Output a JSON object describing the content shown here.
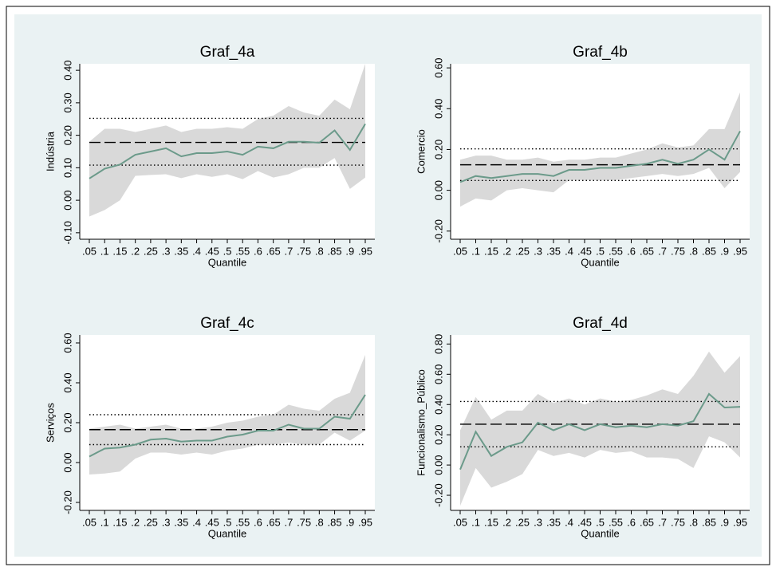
{
  "chart_data": [
    {
      "type": "line",
      "title": "Graf_4a",
      "ylabel": "Indústria",
      "xlabel": "Quantile",
      "categories": [
        ".05",
        ".1",
        ".15",
        ".2",
        ".25",
        ".3",
        ".35",
        ".4",
        ".45",
        ".5",
        ".55",
        ".6",
        ".65",
        ".7",
        ".75",
        ".8",
        ".85",
        ".9",
        ".95"
      ],
      "series": [
        {
          "color": "#6b9a8a",
          "values": [
            0.067,
            0.097,
            0.11,
            0.14,
            0.15,
            0.16,
            0.135,
            0.145,
            0.145,
            0.15,
            0.14,
            0.165,
            0.16,
            0.18,
            0.18,
            0.177,
            0.215,
            0.155,
            0.235
          ]
        }
      ],
      "band": {
        "color": "#d9d9d9",
        "upper": [
          0.18,
          0.22,
          0.22,
          0.21,
          0.22,
          0.23,
          0.21,
          0.22,
          0.22,
          0.225,
          0.22,
          0.25,
          0.26,
          0.29,
          0.27,
          0.26,
          0.31,
          0.28,
          0.42
        ],
        "lower": [
          -0.05,
          -0.03,
          0.0,
          0.075,
          0.078,
          0.08,
          0.068,
          0.08,
          0.072,
          0.08,
          0.065,
          0.09,
          0.07,
          0.08,
          0.1,
          0.1,
          0.13,
          0.035,
          0.07
        ]
      },
      "hlines": [
        {
          "value": 0.178,
          "style": "dashed",
          "color": "#000000"
        },
        {
          "value": 0.252,
          "style": "dotted",
          "color": "#000000"
        },
        {
          "value": 0.108,
          "style": "dotted",
          "color": "#000000"
        }
      ],
      "ylim": [
        -0.12,
        0.42
      ],
      "yticks": [
        {
          "value": -0.1,
          "label": "-0.10"
        },
        {
          "value": 0,
          "label": "0.00"
        },
        {
          "value": 0.1,
          "label": "0.10"
        },
        {
          "value": 0.2,
          "label": "0.20"
        },
        {
          "value": 0.3,
          "label": "0.30"
        },
        {
          "value": 0.4,
          "label": "0.40"
        }
      ]
    },
    {
      "type": "line",
      "title": "Graf_4b",
      "ylabel": "Comercio",
      "xlabel": "Quantile",
      "categories": [
        ".05",
        ".1",
        ".15",
        ".2",
        ".25",
        ".3",
        ".35",
        ".4",
        ".45",
        ".5",
        ".55",
        ".6",
        ".65",
        ".7",
        ".75",
        ".8",
        ".85",
        ".9",
        ".95"
      ],
      "series": [
        {
          "color": "#6b9a8a",
          "values": [
            0.04,
            0.07,
            0.06,
            0.07,
            0.08,
            0.08,
            0.07,
            0.1,
            0.1,
            0.11,
            0.11,
            0.12,
            0.13,
            0.15,
            0.13,
            0.15,
            0.2,
            0.15,
            0.29
          ]
        }
      ],
      "band": {
        "color": "#d9d9d9",
        "upper": [
          0.15,
          0.17,
          0.17,
          0.15,
          0.15,
          0.16,
          0.14,
          0.15,
          0.15,
          0.16,
          0.16,
          0.18,
          0.2,
          0.23,
          0.21,
          0.22,
          0.3,
          0.3,
          0.48
        ],
        "lower": [
          -0.08,
          -0.04,
          -0.05,
          0.0,
          0.01,
          0.0,
          -0.01,
          0.05,
          0.05,
          0.05,
          0.05,
          0.06,
          0.07,
          0.08,
          0.07,
          0.08,
          0.11,
          0.01,
          0.09
        ]
      },
      "hlines": [
        {
          "value": 0.125,
          "style": "dashed",
          "color": "#000000"
        },
        {
          "value": 0.203,
          "style": "dotted",
          "color": "#000000"
        },
        {
          "value": 0.048,
          "style": "dotted",
          "color": "#000000"
        }
      ],
      "ylim": [
        -0.24,
        0.62
      ],
      "yticks": [
        {
          "value": -0.2,
          "label": "-0.20"
        },
        {
          "value": 0,
          "label": "0.00"
        },
        {
          "value": 0.2,
          "label": "0.20"
        },
        {
          "value": 0.4,
          "label": "0.40"
        },
        {
          "value": 0.6,
          "label": "0.60"
        }
      ]
    },
    {
      "type": "line",
      "title": "Graf_4c",
      "ylabel": "Serviços",
      "xlabel": "Quantile",
      "categories": [
        ".05",
        ".1",
        ".15",
        ".2",
        ".25",
        ".3",
        ".35",
        ".4",
        ".45",
        ".5",
        ".55",
        ".6",
        ".65",
        ".7",
        ".75",
        ".8",
        ".85",
        ".9",
        ".95"
      ],
      "series": [
        {
          "color": "#6b9a8a",
          "values": [
            0.03,
            0.07,
            0.075,
            0.09,
            0.115,
            0.12,
            0.105,
            0.11,
            0.11,
            0.13,
            0.14,
            0.16,
            0.16,
            0.19,
            0.17,
            0.17,
            0.23,
            0.22,
            0.34
          ]
        }
      ],
      "band": {
        "color": "#d9d9d9",
        "upper": [
          0.17,
          0.18,
          0.19,
          0.17,
          0.18,
          0.19,
          0.17,
          0.17,
          0.18,
          0.2,
          0.21,
          0.23,
          0.24,
          0.29,
          0.27,
          0.26,
          0.32,
          0.35,
          0.54
        ],
        "lower": [
          -0.06,
          -0.055,
          -0.045,
          0.02,
          0.05,
          0.05,
          0.04,
          0.05,
          0.04,
          0.06,
          0.07,
          0.09,
          0.09,
          0.1,
          0.09,
          0.09,
          0.15,
          0.11,
          0.16
        ]
      },
      "hlines": [
        {
          "value": 0.165,
          "style": "dashed",
          "color": "#000000"
        },
        {
          "value": 0.24,
          "style": "dotted",
          "color": "#000000"
        },
        {
          "value": 0.09,
          "style": "dotted",
          "color": "#000000"
        }
      ],
      "ylim": [
        -0.24,
        0.64
      ],
      "yticks": [
        {
          "value": -0.2,
          "label": "-0.20"
        },
        {
          "value": 0,
          "label": "0.00"
        },
        {
          "value": 0.2,
          "label": "0.20"
        },
        {
          "value": 0.4,
          "label": "0.40"
        },
        {
          "value": 0.6,
          "label": "0.60"
        }
      ]
    },
    {
      "type": "line",
      "title": "Graf_4d",
      "ylabel": "Funcionalismo_Público",
      "xlabel": "Quantile",
      "categories": [
        ".05",
        ".1",
        ".15",
        ".2",
        ".25",
        ".3",
        ".35",
        ".4",
        ".45",
        ".5",
        ".55",
        ".6",
        ".65",
        ".7",
        ".75",
        ".8",
        ".85",
        ".9",
        ".95"
      ],
      "series": [
        {
          "color": "#6b9a8a",
          "values": [
            -0.03,
            0.22,
            0.06,
            0.12,
            0.15,
            0.28,
            0.23,
            0.27,
            0.23,
            0.27,
            0.25,
            0.26,
            0.25,
            0.27,
            0.26,
            0.29,
            0.47,
            0.38,
            0.385
          ]
        }
      ],
      "band": {
        "color": "#d9d9d9",
        "upper": [
          0.23,
          0.45,
          0.3,
          0.36,
          0.36,
          0.47,
          0.41,
          0.44,
          0.4,
          0.44,
          0.42,
          0.43,
          0.46,
          0.5,
          0.47,
          0.59,
          0.75,
          0.61,
          0.72
        ],
        "lower": [
          -0.27,
          -0.02,
          -0.15,
          -0.11,
          -0.06,
          0.1,
          0.06,
          0.08,
          0.05,
          0.1,
          0.08,
          0.09,
          0.05,
          0.05,
          0.04,
          -0.02,
          0.19,
          0.15,
          0.05
        ]
      },
      "hlines": [
        {
          "value": 0.27,
          "style": "dashed",
          "color": "#000000"
        },
        {
          "value": 0.42,
          "style": "dotted",
          "color": "#000000"
        },
        {
          "value": 0.12,
          "style": "dotted",
          "color": "#000000"
        }
      ],
      "ylim": [
        -0.3,
        0.86
      ],
      "yticks": [
        {
          "value": -0.2,
          "label": "-0.20"
        },
        {
          "value": 0,
          "label": "0.00"
        },
        {
          "value": 0.2,
          "label": "0.20"
        },
        {
          "value": 0.4,
          "label": "0.40"
        },
        {
          "value": 0.6,
          "label": "0.60"
        },
        {
          "value": 0.8,
          "label": "0.80"
        }
      ]
    }
  ]
}
